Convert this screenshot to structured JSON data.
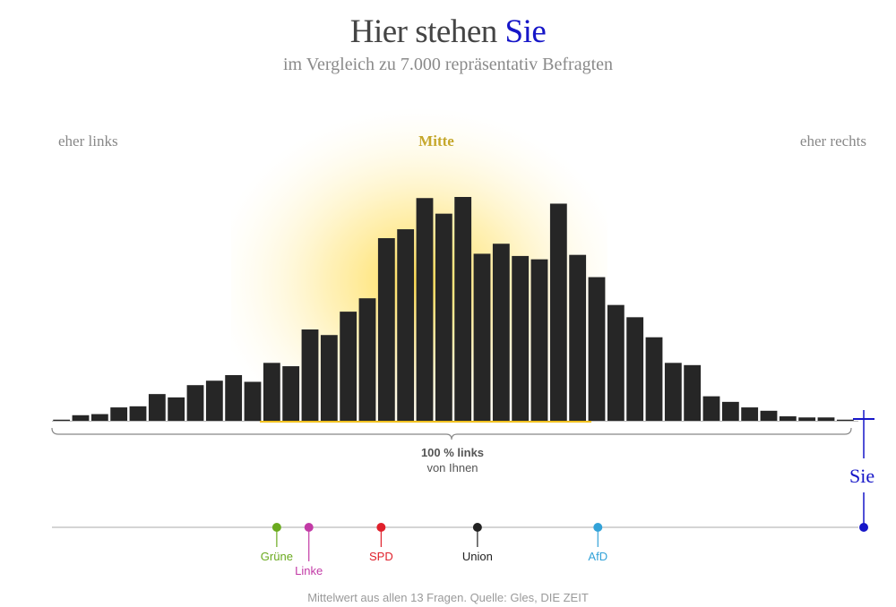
{
  "header": {
    "title_main": "Hier stehen",
    "title_highlight": "Sie",
    "subtitle": "im Vergleich zu 7.000 repräsentativ Befragten"
  },
  "labels": {
    "left": "eher links",
    "center": "Mitte",
    "right": "eher rechts",
    "distance_value": "100 % links",
    "distance_caption": "von Ihnen",
    "you": "Sie"
  },
  "footer": "Mittelwert aus allen 13 Fragen. Quelle: Gles, DIE ZEIT",
  "colors": {
    "bar": "#262626",
    "highlight_glow": "#ffd633",
    "you": "#1616c8"
  },
  "chart_data": {
    "type": "bar",
    "title": "Hier stehen Sie",
    "subtitle": "im Vergleich zu 7.000 repräsentativ Befragten",
    "xlabel": "",
    "ylabel": "",
    "xlim": [
      -1,
      1
    ],
    "bin_values": [
      1,
      5,
      6,
      12,
      13,
      24,
      21,
      32,
      36,
      41,
      35,
      52,
      49,
      82,
      77,
      98,
      110,
      164,
      172,
      200,
      186,
      201,
      150,
      159,
      148,
      145,
      195,
      149,
      129,
      104,
      93,
      75,
      52,
      50,
      22,
      17,
      12,
      9,
      4,
      3,
      3,
      1
    ],
    "highlighted_range": "Mitte",
    "you_position": 1.0,
    "you_label": "Sie",
    "parties": [
      {
        "name": "Grüne",
        "position": -0.44,
        "color": "#6aaa1e"
      },
      {
        "name": "Linke",
        "position": -0.36,
        "color": "#c23aa6"
      },
      {
        "name": "SPD",
        "position": -0.18,
        "color": "#e0202b"
      },
      {
        "name": "Union",
        "position": 0.06,
        "color": "#222222"
      },
      {
        "name": "AfD",
        "position": 0.36,
        "color": "#32a2d8"
      }
    ]
  }
}
